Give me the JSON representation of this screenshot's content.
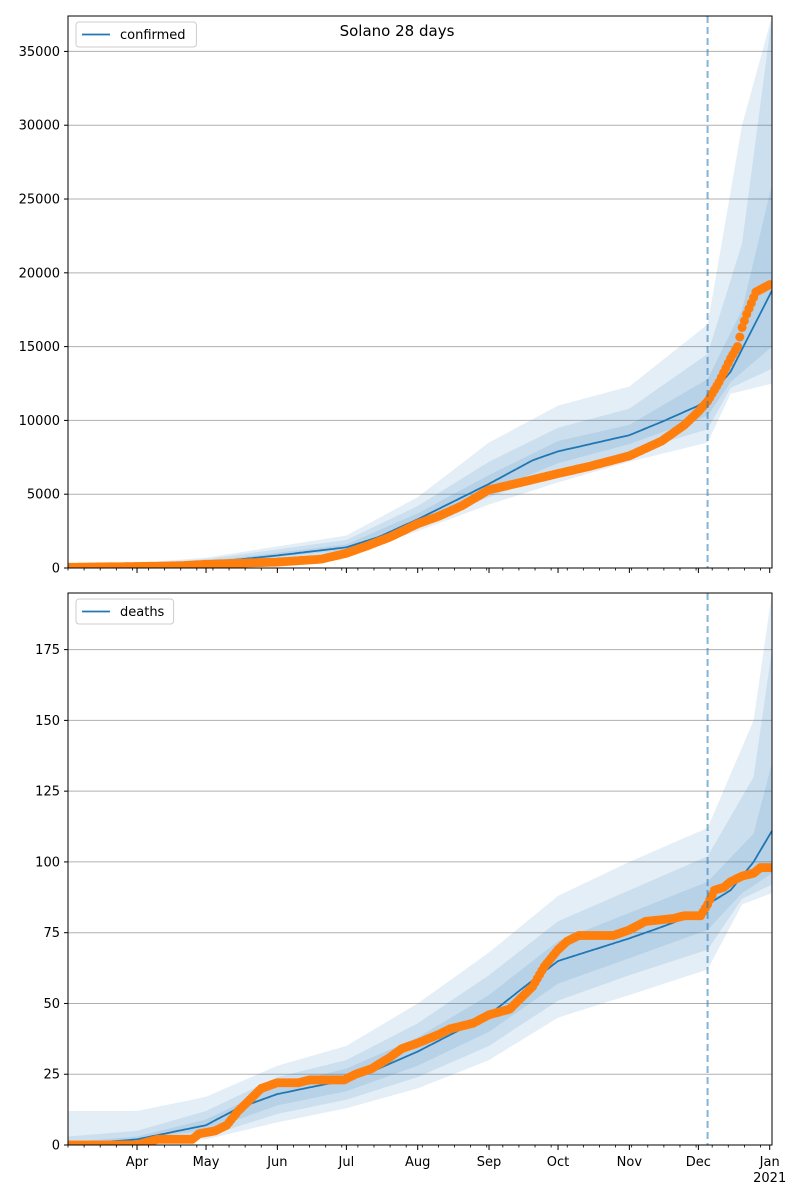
{
  "title": "Solano 28 days",
  "colors": {
    "model": "#1f77b4",
    "observed": "#ff7f0e",
    "grid": "#b0b0b0",
    "band": "#1f77b4"
  },
  "x_axis": {
    "start": "2020-03-02",
    "end": "2021-01-02",
    "month_ticks": [
      {
        "date": "2020-04-01",
        "label": "Apr"
      },
      {
        "date": "2020-05-01",
        "label": "May"
      },
      {
        "date": "2020-06-01",
        "label": "Jun"
      },
      {
        "date": "2020-07-01",
        "label": "Jul"
      },
      {
        "date": "2020-08-01",
        "label": "Aug"
      },
      {
        "date": "2020-09-01",
        "label": "Sep"
      },
      {
        "date": "2020-10-01",
        "label": "Oct"
      },
      {
        "date": "2020-11-01",
        "label": "Nov"
      },
      {
        "date": "2020-12-01",
        "label": "Dec"
      },
      {
        "date": "2021-01-01",
        "label": "Jan"
      }
    ],
    "year_label": "2021",
    "forecast_start": "2020-12-05"
  },
  "chart_data": [
    {
      "type": "line",
      "name": "confirmed",
      "legend": "confirmed",
      "legend_position": "upper-left",
      "ylim": [
        0,
        37400
      ],
      "yticks": [
        0,
        5000,
        10000,
        15000,
        20000,
        25000,
        30000,
        35000
      ],
      "grid": true,
      "model_median": [
        [
          "2020-03-02",
          0
        ],
        [
          "2020-04-01",
          80
        ],
        [
          "2020-05-01",
          350
        ],
        [
          "2020-06-01",
          850
        ],
        [
          "2020-07-01",
          1400
        ],
        [
          "2020-07-15",
          2100
        ],
        [
          "2020-08-01",
          3300
        ],
        [
          "2020-09-01",
          5700
        ],
        [
          "2020-09-20",
          7300
        ],
        [
          "2020-10-01",
          7900
        ],
        [
          "2020-11-01",
          9000
        ],
        [
          "2020-11-15",
          9900
        ],
        [
          "2020-12-01",
          11000
        ],
        [
          "2020-12-05",
          11500
        ],
        [
          "2020-12-15",
          13300
        ],
        [
          "2021-01-02",
          18800
        ]
      ],
      "bands": [
        {
          "lower": [
            [
              "2020-03-02",
              0
            ],
            [
              "2020-05-01",
              100
            ],
            [
              "2020-07-01",
              900
            ],
            [
              "2020-08-01",
              2500
            ],
            [
              "2020-09-01",
              4300
            ],
            [
              "2020-10-01",
              5800
            ],
            [
              "2020-11-01",
              7200
            ],
            [
              "2020-12-05",
              8500
            ],
            [
              "2020-12-15",
              11800
            ],
            [
              "2021-01-02",
              12500
            ]
          ],
          "upper": [
            [
              "2020-03-02",
              0
            ],
            [
              "2020-05-01",
              700
            ],
            [
              "2020-07-01",
              2200
            ],
            [
              "2020-08-01",
              4800
            ],
            [
              "2020-09-01",
              8500
            ],
            [
              "2020-10-01",
              11000
            ],
            [
              "2020-11-01",
              12300
            ],
            [
              "2020-12-05",
              16500
            ],
            [
              "2020-12-20",
              30000
            ],
            [
              "2021-01-02",
              37400
            ]
          ]
        },
        {
          "lower": [
            [
              "2020-03-02",
              0
            ],
            [
              "2020-05-01",
              150
            ],
            [
              "2020-07-01",
              1100
            ],
            [
              "2020-08-01",
              2800
            ],
            [
              "2020-09-01",
              4800
            ],
            [
              "2020-10-01",
              6500
            ],
            [
              "2020-11-01",
              7800
            ],
            [
              "2020-12-05",
              9400
            ],
            [
              "2020-12-15",
              12200
            ],
            [
              "2021-01-02",
              13500
            ]
          ],
          "upper": [
            [
              "2020-03-02",
              0
            ],
            [
              "2020-05-01",
              600
            ],
            [
              "2020-07-01",
              1900
            ],
            [
              "2020-08-01",
              4200
            ],
            [
              "2020-09-01",
              7200
            ],
            [
              "2020-10-01",
              9500
            ],
            [
              "2020-11-01",
              10800
            ],
            [
              "2020-12-05",
              14500
            ],
            [
              "2020-12-20",
              22000
            ],
            [
              "2021-01-02",
              37400
            ]
          ]
        },
        {
          "lower": [
            [
              "2020-03-02",
              0
            ],
            [
              "2020-05-01",
              250
            ],
            [
              "2020-07-01",
              1250
            ],
            [
              "2020-08-01",
              3000
            ],
            [
              "2020-09-01",
              5200
            ],
            [
              "2020-10-01",
              7100
            ],
            [
              "2020-11-01",
              8400
            ],
            [
              "2020-12-05",
              10300
            ],
            [
              "2020-12-15",
              12600
            ],
            [
              "2021-01-02",
              15000
            ]
          ],
          "upper": [
            [
              "2020-03-02",
              0
            ],
            [
              "2020-05-01",
              450
            ],
            [
              "2020-07-01",
              1600
            ],
            [
              "2020-08-01",
              3700
            ],
            [
              "2020-09-01",
              6300
            ],
            [
              "2020-10-01",
              8600
            ],
            [
              "2020-11-01",
              9700
            ],
            [
              "2020-12-05",
              12800
            ],
            [
              "2020-12-20",
              17500
            ],
            [
              "2021-01-02",
              26000
            ]
          ]
        }
      ],
      "observed": [
        [
          "2020-03-02",
          50
        ],
        [
          "2020-04-01",
          100
        ],
        [
          "2020-04-20",
          150
        ],
        [
          "2020-05-01",
          250
        ],
        [
          "2020-05-20",
          350
        ],
        [
          "2020-06-01",
          400
        ],
        [
          "2020-06-20",
          600
        ],
        [
          "2020-07-01",
          1000
        ],
        [
          "2020-07-10",
          1500
        ],
        [
          "2020-07-20",
          2100
        ],
        [
          "2020-08-01",
          3000
        ],
        [
          "2020-08-10",
          3500
        ],
        [
          "2020-08-20",
          4200
        ],
        [
          "2020-09-01",
          5300
        ],
        [
          "2020-09-15",
          5800
        ],
        [
          "2020-10-01",
          6400
        ],
        [
          "2020-10-15",
          6900
        ],
        [
          "2020-11-01",
          7600
        ],
        [
          "2020-11-15",
          8600
        ],
        [
          "2020-11-25",
          9700
        ],
        [
          "2020-12-01",
          10600
        ],
        [
          "2020-12-05",
          11300
        ],
        [
          "2020-12-10",
          12600
        ],
        [
          "2020-12-15",
          14200
        ],
        [
          "2020-12-18",
          15000
        ],
        [
          "2020-12-20",
          16300
        ],
        [
          "2020-12-22",
          17200
        ],
        [
          "2020-12-26",
          18700
        ],
        [
          "2021-01-01",
          19200
        ]
      ]
    },
    {
      "type": "line",
      "name": "deaths",
      "legend": "deaths",
      "legend_position": "upper-left",
      "ylim": [
        0,
        195
      ],
      "yticks": [
        0,
        25,
        50,
        75,
        100,
        125,
        150,
        175
      ],
      "grid": true,
      "model_median": [
        [
          "2020-03-02",
          0
        ],
        [
          "2020-04-01",
          2
        ],
        [
          "2020-05-01",
          7
        ],
        [
          "2020-05-15",
          13
        ],
        [
          "2020-06-01",
          18
        ],
        [
          "2020-07-01",
          23
        ],
        [
          "2020-07-15",
          27
        ],
        [
          "2020-08-01",
          33
        ],
        [
          "2020-09-01",
          46
        ],
        [
          "2020-09-15",
          55
        ],
        [
          "2020-10-01",
          65
        ],
        [
          "2020-11-01",
          73
        ],
        [
          "2020-11-15",
          77
        ],
        [
          "2020-12-01",
          82
        ],
        [
          "2020-12-05",
          85
        ],
        [
          "2020-12-15",
          90
        ],
        [
          "2020-12-25",
          100
        ],
        [
          "2021-01-02",
          111
        ]
      ],
      "bands": [
        {
          "lower": [
            [
              "2020-03-02",
              0
            ],
            [
              "2020-05-01",
              2
            ],
            [
              "2020-06-01",
              8
            ],
            [
              "2020-07-01",
              13
            ],
            [
              "2020-08-01",
              20
            ],
            [
              "2020-09-01",
              30
            ],
            [
              "2020-10-01",
              45
            ],
            [
              "2020-11-01",
              53
            ],
            [
              "2020-12-05",
              62
            ],
            [
              "2020-12-20",
              85
            ],
            [
              "2021-01-02",
              89
            ]
          ],
          "upper": [
            [
              "2020-03-02",
              12
            ],
            [
              "2020-04-01",
              12
            ],
            [
              "2020-05-01",
              17
            ],
            [
              "2020-06-01",
              28
            ],
            [
              "2020-07-01",
              35
            ],
            [
              "2020-08-01",
              50
            ],
            [
              "2020-09-01",
              68
            ],
            [
              "2020-10-01",
              88
            ],
            [
              "2020-11-01",
              100
            ],
            [
              "2020-12-05",
              112
            ],
            [
              "2020-12-25",
              150
            ],
            [
              "2021-01-02",
              195
            ]
          ]
        },
        {
          "lower": [
            [
              "2020-03-02",
              0
            ],
            [
              "2020-05-01",
              3
            ],
            [
              "2020-06-01",
              11
            ],
            [
              "2020-07-01",
              16
            ],
            [
              "2020-08-01",
              24
            ],
            [
              "2020-09-01",
              35
            ],
            [
              "2020-10-01",
              51
            ],
            [
              "2020-11-01",
              60
            ],
            [
              "2020-12-05",
              69
            ],
            [
              "2020-12-20",
              87
            ],
            [
              "2021-01-02",
              92
            ]
          ],
          "upper": [
            [
              "2020-03-02",
              3
            ],
            [
              "2020-04-01",
              5
            ],
            [
              "2020-05-01",
              12
            ],
            [
              "2020-06-01",
              24
            ],
            [
              "2020-07-01",
              30
            ],
            [
              "2020-08-01",
              43
            ],
            [
              "2020-09-01",
              60
            ],
            [
              "2020-10-01",
              79
            ],
            [
              "2020-11-01",
              90
            ],
            [
              "2020-12-05",
              102
            ],
            [
              "2020-12-25",
              130
            ],
            [
              "2021-01-02",
              175
            ]
          ]
        },
        {
          "lower": [
            [
              "2020-03-02",
              0
            ],
            [
              "2020-05-01",
              5
            ],
            [
              "2020-06-01",
              14
            ],
            [
              "2020-07-01",
              19
            ],
            [
              "2020-08-01",
              28
            ],
            [
              "2020-09-01",
              40
            ],
            [
              "2020-10-01",
              57
            ],
            [
              "2020-11-01",
              66
            ],
            [
              "2020-12-05",
              76
            ],
            [
              "2020-12-20",
              89
            ],
            [
              "2021-01-02",
              96
            ]
          ],
          "upper": [
            [
              "2020-03-02",
              1
            ],
            [
              "2020-04-01",
              3
            ],
            [
              "2020-05-01",
              9
            ],
            [
              "2020-06-01",
              21
            ],
            [
              "2020-07-01",
              27
            ],
            [
              "2020-08-01",
              38
            ],
            [
              "2020-09-01",
              53
            ],
            [
              "2020-10-01",
              72
            ],
            [
              "2020-11-01",
              82
            ],
            [
              "2020-12-05",
              93
            ],
            [
              "2020-12-25",
              110
            ],
            [
              "2021-01-02",
              135
            ]
          ]
        }
      ],
      "observed": [
        [
          "2020-03-02",
          0
        ],
        [
          "2020-04-01",
          0
        ],
        [
          "2020-04-05",
          1
        ],
        [
          "2020-04-10",
          2
        ],
        [
          "2020-04-25",
          2
        ],
        [
          "2020-04-28",
          4
        ],
        [
          "2020-05-05",
          5
        ],
        [
          "2020-05-10",
          7
        ],
        [
          "2020-05-15",
          12
        ],
        [
          "2020-05-20",
          16
        ],
        [
          "2020-05-25",
          20
        ],
        [
          "2020-06-01",
          22
        ],
        [
          "2020-06-10",
          22
        ],
        [
          "2020-06-15",
          23
        ],
        [
          "2020-06-30",
          23
        ],
        [
          "2020-07-05",
          25
        ],
        [
          "2020-07-12",
          27
        ],
        [
          "2020-07-20",
          31
        ],
        [
          "2020-07-25",
          34
        ],
        [
          "2020-08-01",
          36
        ],
        [
          "2020-08-10",
          39
        ],
        [
          "2020-08-15",
          41
        ],
        [
          "2020-08-25",
          43
        ],
        [
          "2020-09-01",
          46
        ],
        [
          "2020-09-10",
          48
        ],
        [
          "2020-09-15",
          52
        ],
        [
          "2020-09-20",
          56
        ],
        [
          "2020-09-25",
          63
        ],
        [
          "2020-10-01",
          69
        ],
        [
          "2020-10-05",
          72
        ],
        [
          "2020-10-10",
          74
        ],
        [
          "2020-10-25",
          74
        ],
        [
          "2020-11-01",
          76
        ],
        [
          "2020-11-08",
          79
        ],
        [
          "2020-11-20",
          80
        ],
        [
          "2020-11-25",
          81
        ],
        [
          "2020-12-02",
          81
        ],
        [
          "2020-12-05",
          85
        ],
        [
          "2020-12-08",
          90
        ],
        [
          "2020-12-12",
          91
        ],
        [
          "2020-12-15",
          93
        ],
        [
          "2020-12-20",
          95
        ],
        [
          "2020-12-25",
          96
        ],
        [
          "2020-12-28",
          98
        ],
        [
          "2021-01-02",
          98
        ]
      ]
    }
  ]
}
